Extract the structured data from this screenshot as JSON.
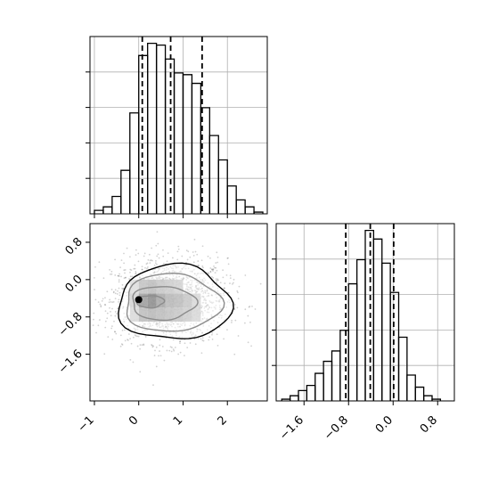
{
  "chart_data": [
    {
      "type": "histogram",
      "panel": "top-left",
      "variable": "x",
      "xlim": [
        -1.1,
        2.9
      ],
      "bins": [
        {
          "x0": -1.0,
          "x1": -0.8,
          "count": 2
        },
        {
          "x0": -0.8,
          "x1": -0.6,
          "count": 4
        },
        {
          "x0": -0.6,
          "x1": -0.4,
          "count": 10
        },
        {
          "x0": -0.4,
          "x1": -0.2,
          "count": 25
        },
        {
          "x0": -0.2,
          "x1": 0.0,
          "count": 58
        },
        {
          "x0": 0.0,
          "x1": 0.2,
          "count": 91
        },
        {
          "x0": 0.2,
          "x1": 0.4,
          "count": 98
        },
        {
          "x0": 0.4,
          "x1": 0.6,
          "count": 97
        },
        {
          "x0": 0.6,
          "x1": 0.8,
          "count": 89
        },
        {
          "x0": 0.8,
          "x1": 1.0,
          "count": 81
        },
        {
          "x0": 1.0,
          "x1": 1.2,
          "count": 80
        },
        {
          "x0": 1.2,
          "x1": 1.4,
          "count": 75
        },
        {
          "x0": 1.4,
          "x1": 1.6,
          "count": 61
        },
        {
          "x0": 1.6,
          "x1": 1.8,
          "count": 45
        },
        {
          "x0": 1.8,
          "x1": 2.0,
          "count": 31
        },
        {
          "x0": 2.0,
          "x1": 2.2,
          "count": 16
        },
        {
          "x0": 2.2,
          "x1": 2.4,
          "count": 8
        },
        {
          "x0": 2.4,
          "x1": 2.6,
          "count": 4
        },
        {
          "x0": 2.6,
          "x1": 2.8,
          "count": 1
        }
      ],
      "quantile_lines": [
        0.08,
        0.72,
        1.43
      ],
      "grid": true
    },
    {
      "type": "histogram",
      "panel": "bottom-right",
      "variable": "y",
      "xlim": [
        -2.1,
        1.1
      ],
      "xticks": [
        "−1.6",
        "−0.8",
        "0.0",
        "0.8"
      ],
      "xtick_values": [
        -1.6,
        -0.8,
        0.0,
        0.8
      ],
      "bins": [
        {
          "x0": -2.0,
          "x1": -1.85,
          "count": 1
        },
        {
          "x0": -1.85,
          "x1": -1.7,
          "count": 3
        },
        {
          "x0": -1.7,
          "x1": -1.55,
          "count": 6
        },
        {
          "x0": -1.55,
          "x1": -1.4,
          "count": 9
        },
        {
          "x0": -1.4,
          "x1": -1.25,
          "count": 16
        },
        {
          "x0": -1.25,
          "x1": -1.1,
          "count": 23
        },
        {
          "x0": -1.1,
          "x1": -0.95,
          "count": 29
        },
        {
          "x0": -0.95,
          "x1": -0.8,
          "count": 41
        },
        {
          "x0": -0.8,
          "x1": -0.65,
          "count": 68
        },
        {
          "x0": -0.65,
          "x1": -0.5,
          "count": 82
        },
        {
          "x0": -0.5,
          "x1": -0.35,
          "count": 99
        },
        {
          "x0": -0.35,
          "x1": -0.2,
          "count": 94
        },
        {
          "x0": -0.2,
          "x1": -0.05,
          "count": 80
        },
        {
          "x0": -0.05,
          "x1": 0.1,
          "count": 63
        },
        {
          "x0": 0.1,
          "x1": 0.25,
          "count": 37
        },
        {
          "x0": 0.25,
          "x1": 0.4,
          "count": 15
        },
        {
          "x0": 0.4,
          "x1": 0.55,
          "count": 8
        },
        {
          "x0": 0.55,
          "x1": 0.7,
          "count": 3
        },
        {
          "x0": 0.7,
          "x1": 0.85,
          "count": 1
        }
      ],
      "quantile_lines": [
        -0.85,
        -0.41,
        0.01
      ],
      "grid": true
    },
    {
      "type": "scatter_density",
      "panel": "bottom-left",
      "xlim": [
        -1.1,
        2.9
      ],
      "ylim": [
        -2.6,
        1.2
      ],
      "xticks": [
        "−1",
        "0",
        "1",
        "2"
      ],
      "xtick_values": [
        -1,
        0,
        1,
        2
      ],
      "yticks": [
        "−1.6",
        "−0.8",
        "0.0",
        "0.8"
      ],
      "ytick_values": [
        -1.6,
        -0.8,
        0.0,
        0.8
      ],
      "peak": {
        "x": 0.2,
        "y": -0.45
      },
      "contour_levels": [
        "inner",
        "second",
        "third",
        "outer"
      ],
      "density_cells": [
        {
          "x0": 0.0,
          "x1": 0.2,
          "y0": -0.6,
          "y1": -0.3,
          "level": 0.85
        },
        {
          "x0": 0.2,
          "x1": 0.4,
          "y0": -0.6,
          "y1": -0.3,
          "level": 1.0
        },
        {
          "x0": 0.4,
          "x1": 0.6,
          "y0": -0.6,
          "y1": -0.3,
          "level": 0.75
        },
        {
          "x0": 0.6,
          "x1": 0.8,
          "y0": -0.6,
          "y1": -0.3,
          "level": 0.6
        },
        {
          "x0": 0.8,
          "x1": 1.0,
          "y0": -0.6,
          "y1": -0.3,
          "level": 0.55
        },
        {
          "x0": 0.0,
          "x1": 0.2,
          "y0": -0.9,
          "y1": -0.6,
          "level": 0.55
        },
        {
          "x0": 0.2,
          "x1": 0.4,
          "y0": -0.9,
          "y1": -0.6,
          "level": 0.6
        },
        {
          "x0": 0.4,
          "x1": 0.6,
          "y0": -0.9,
          "y1": -0.6,
          "level": 0.55
        },
        {
          "x0": 0.6,
          "x1": 0.8,
          "y0": -0.9,
          "y1": -0.6,
          "level": 0.5
        },
        {
          "x0": 0.8,
          "x1": 1.0,
          "y0": -0.9,
          "y1": -0.6,
          "level": 0.45
        },
        {
          "x0": 0.0,
          "x1": 0.2,
          "y0": -0.3,
          "y1": 0.0,
          "level": 0.5
        },
        {
          "x0": 0.2,
          "x1": 0.4,
          "y0": -0.3,
          "y1": 0.0,
          "level": 0.55
        },
        {
          "x0": 0.4,
          "x1": 0.6,
          "y0": -0.3,
          "y1": 0.0,
          "level": 0.45
        },
        {
          "x0": 0.6,
          "x1": 0.8,
          "y0": -0.3,
          "y1": 0.0,
          "level": 0.4
        },
        {
          "x0": 0.8,
          "x1": 1.0,
          "y0": -0.3,
          "y1": 0.0,
          "level": 0.35
        },
        {
          "x0": 1.0,
          "x1": 1.2,
          "y0": -0.6,
          "y1": -0.3,
          "level": 0.45
        },
        {
          "x0": 1.0,
          "x1": 1.2,
          "y0": -0.9,
          "y1": -0.6,
          "level": 0.4
        },
        {
          "x0": 1.2,
          "x1": 1.4,
          "y0": -0.6,
          "y1": -0.3,
          "level": 0.3
        },
        {
          "x0": 1.2,
          "x1": 1.4,
          "y0": -0.9,
          "y1": -0.6,
          "level": 0.3
        },
        {
          "x0": -0.2,
          "x1": 0.0,
          "y0": -0.6,
          "y1": -0.3,
          "level": 0.35
        },
        {
          "x0": -0.2,
          "x1": 0.0,
          "y0": -0.3,
          "y1": 0.0,
          "level": 0.25
        },
        {
          "x0": -0.2,
          "x1": 0.0,
          "y0": -0.9,
          "y1": -0.6,
          "level": 0.3
        }
      ]
    }
  ]
}
